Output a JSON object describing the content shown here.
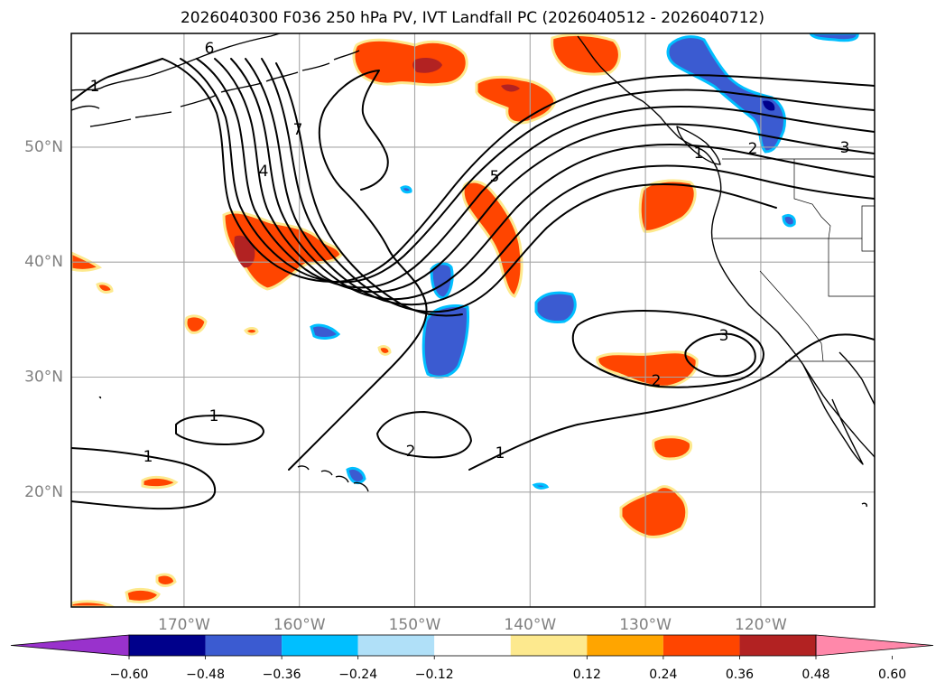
{
  "title": "2026040300 F036 250 hPa PV, IVT Landfall PC (2026040512 - 2026040712)",
  "map": {
    "lat_labels": [
      {
        "text": "50°N",
        "lat": 50
      },
      {
        "text": "40°N",
        "lat": 40
      },
      {
        "text": "30°N",
        "lat": 30
      },
      {
        "text": "20°N",
        "lat": 20
      }
    ],
    "lon_labels": [
      {
        "text": "170°W",
        "lon": -170
      },
      {
        "text": "160°W",
        "lon": -160
      },
      {
        "text": "150°W",
        "lon": -150
      },
      {
        "text": "140°W",
        "lon": -140
      },
      {
        "text": "130°W",
        "lon": -130
      },
      {
        "text": "120°W",
        "lon": -120
      }
    ],
    "contour_labels": [
      "1",
      "1",
      "1",
      "2",
      "1",
      "2",
      "3",
      "6",
      "7",
      "4",
      "5",
      "1",
      "2",
      "3",
      "1"
    ]
  },
  "colorbar": {
    "ticks": [
      "−0.60",
      "−0.48",
      "−0.36",
      "−0.24",
      "−0.12",
      "0.12",
      "0.24",
      "0.36",
      "0.48",
      "0.60"
    ],
    "colors": [
      "#9932cc",
      "#00008b",
      "#3b5bd1",
      "#00bfff",
      "#b0e0f8",
      "#ffffff",
      "#fde98e",
      "#ffa500",
      "#ff4500",
      "#b22222",
      "#ff88aa"
    ]
  },
  "shading_colors": {
    "neg_strong": "#3b5bd1",
    "neg_weak": "#00bfff",
    "pos_weak": "#ffa500",
    "pos_mid": "#ff4500",
    "pos_strong": "#b22222",
    "pos_edge": "#fde98e"
  }
}
